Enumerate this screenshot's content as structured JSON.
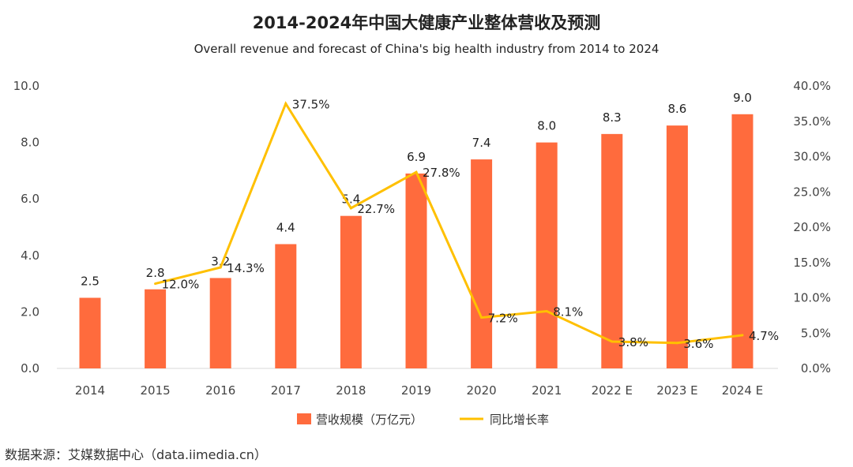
{
  "chart_data": {
    "type": "bar+line",
    "title": "2014-2024年中国大健康产业整体营收及预测",
    "subtitle": "Overall revenue and forecast of China's big health industry from 2014 to 2024",
    "categories": [
      "2014",
      "2015",
      "2016",
      "2017",
      "2018",
      "2019",
      "2020",
      "2021",
      "2022 E",
      "2023 E",
      "2024 E"
    ],
    "series": [
      {
        "name": "营收规模（万亿元）",
        "type": "bar",
        "axis": "left",
        "color": "#FF6B3D",
        "values": [
          2.5,
          2.8,
          3.2,
          4.4,
          5.4,
          6.9,
          7.4,
          8.0,
          8.3,
          8.6,
          9.0
        ],
        "labels": [
          "2.5",
          "2.8",
          "3.2",
          "4.4",
          "5.4",
          "6.9",
          "7.4",
          "8.0",
          "8.3",
          "8.6",
          "9.0"
        ]
      },
      {
        "name": "同比增长率",
        "type": "line",
        "axis": "right",
        "color": "#FFC000",
        "values": [
          null,
          12.0,
          14.3,
          37.5,
          22.7,
          27.8,
          7.2,
          8.1,
          3.8,
          3.6,
          4.7
        ],
        "labels": [
          null,
          "12.0%",
          "14.3%",
          "37.5%",
          "22.7%",
          "27.8%",
          "7.2%",
          "8.1%",
          "3.8%",
          "3.6%",
          "4.7%"
        ]
      }
    ],
    "left_axis": {
      "ylim": [
        0,
        10
      ],
      "ticks": [
        0,
        2,
        4,
        6,
        8,
        10
      ],
      "tick_labels": [
        "0.0",
        "2.0",
        "4.0",
        "6.0",
        "8.0",
        "10.0"
      ]
    },
    "right_axis": {
      "ylim": [
        0,
        40
      ],
      "ticks": [
        0,
        5,
        10,
        15,
        20,
        25,
        30,
        35,
        40
      ],
      "tick_labels": [
        "0.0%",
        "5.0%",
        "10.0%",
        "15.0%",
        "20.0%",
        "25.0%",
        "30.0%",
        "35.0%",
        "40.0%"
      ]
    },
    "grid": false,
    "legend_position": "bottom-center"
  },
  "source": "数据来源：艾媒数据中心（data.iimedia.cn）"
}
